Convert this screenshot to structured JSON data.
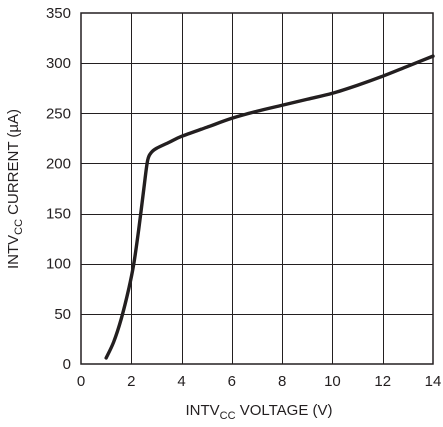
{
  "chart_data": {
    "type": "line",
    "x_axis": {
      "label_prefix": "INTV",
      "label_sub": "CC",
      "label_suffix": " VOLTAGE (V)",
      "range": [
        0,
        14
      ],
      "ticks": [
        0,
        2,
        4,
        6,
        8,
        10,
        12,
        14
      ]
    },
    "y_axis": {
      "label_prefix": "INTV",
      "label_sub": "CC",
      "label_suffix": " CURRENT (µA)",
      "range": [
        0,
        350
      ],
      "ticks": [
        0,
        50,
        100,
        150,
        200,
        250,
        300,
        350
      ]
    },
    "grid": true,
    "series": [
      {
        "x": [
          1.0,
          1.3,
          1.6,
          1.9,
          2.1,
          2.3,
          2.5,
          2.65,
          2.8,
          3.0,
          3.5,
          4.0,
          5.0,
          6.0,
          7.0,
          8.0,
          9.0,
          10.0,
          11.0,
          12.0,
          13.0,
          14.0
        ],
        "y": [
          6,
          22,
          45,
          75,
          100,
          135,
          175,
          203,
          211,
          215,
          221,
          227,
          236,
          245,
          252,
          258,
          264,
          270,
          278,
          287,
          297,
          307
        ]
      }
    ]
  }
}
